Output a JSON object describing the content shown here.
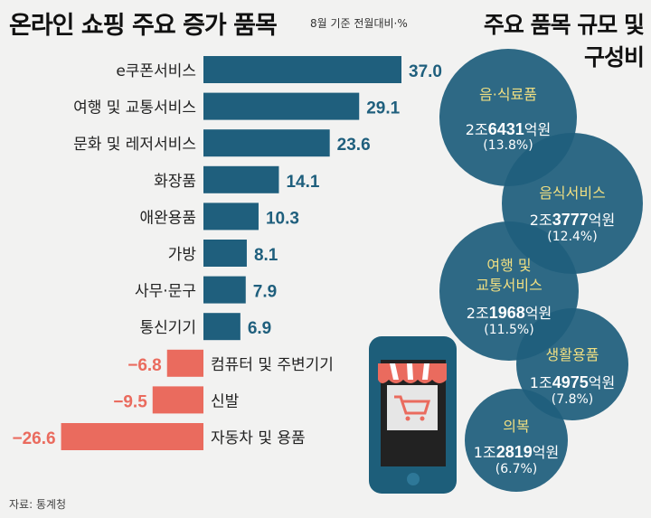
{
  "title": "온라인 쇼핑 주요 증가 품목",
  "subtitle": "8월 기준 전월대비·%",
  "right_title_line1": "주요 품목 규모 및",
  "right_title_line2": "구성비",
  "source": "자료: 통계청",
  "colors": {
    "positive": "#1f5f7d",
    "negative": "#ea6b5e",
    "bubble": "#1f5f7d",
    "bubble_label": "#f0df82"
  },
  "chart_data": {
    "type": "bar",
    "orientation": "horizontal",
    "title": "온라인 쇼핑 주요 증가 품목",
    "unit": "8월 기준 전월대비·%",
    "categories": [
      "e쿠폰서비스",
      "여행 및 교통서비스",
      "문화 및 레저서비스",
      "화장품",
      "애완용품",
      "가방",
      "사무·문구",
      "통신기기",
      "컴퓨터 및 주변기기",
      "신발",
      "자동차 및 용품"
    ],
    "values": [
      37.0,
      29.1,
      23.6,
      14.1,
      10.3,
      8.1,
      7.9,
      6.9,
      -6.8,
      -9.5,
      -26.6
    ],
    "value_labels": [
      "37.0",
      "29.1",
      "23.6",
      "14.1",
      "10.3",
      "8.1",
      "7.9",
      "6.9",
      "−6.8",
      "−9.5",
      "−26.6"
    ]
  },
  "bubbles": [
    {
      "category": "음·식료품",
      "amount_prefix": "2조",
      "amount_bold": "6431",
      "amount_suffix": "억원",
      "share": "(13.8%)"
    },
    {
      "category": "음식서비스",
      "amount_prefix": "2조",
      "amount_bold": "3777",
      "amount_suffix": "억원",
      "share": "(12.4%)"
    },
    {
      "category": "여행 및",
      "category2": "교통서비스",
      "amount_prefix": "2조",
      "amount_bold": "1968",
      "amount_suffix": "억원",
      "share": "(11.5%)"
    },
    {
      "category": "생활용품",
      "amount_prefix": "1조",
      "amount_bold": "4975",
      "amount_suffix": "억원",
      "share": "(7.8%)"
    },
    {
      "category": "의복",
      "amount_prefix": "1조",
      "amount_bold": "2819",
      "amount_suffix": "억원",
      "share": "(6.7%)"
    }
  ]
}
